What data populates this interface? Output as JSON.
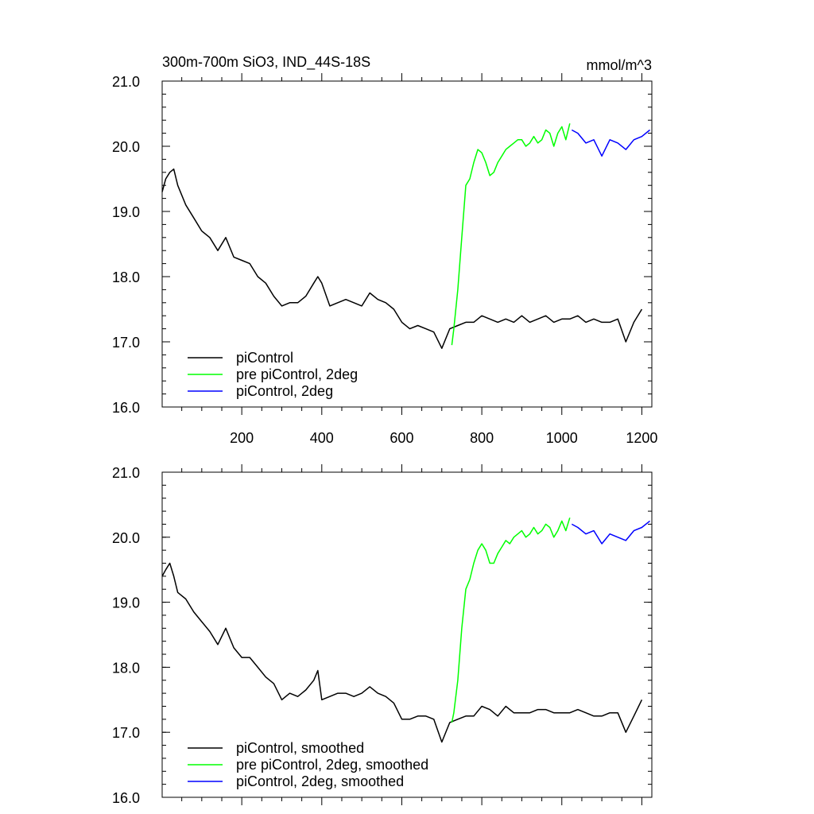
{
  "header": {
    "title": "300m-700m SiO3, IND_44S-18S",
    "units": "mmol/m^3"
  },
  "colors": {
    "piControl": "#000000",
    "pre_piControl_2deg": "#00ff00",
    "piControl_2deg": "#0000ff"
  },
  "chart_data": [
    {
      "type": "line",
      "title": "300m-700m SiO3, IND_44S-18S",
      "units": "mmol/m^3",
      "xlim": [
        1,
        1225
      ],
      "ylim": [
        16.0,
        21.0
      ],
      "xticks": [
        200,
        400,
        600,
        800,
        1000,
        1200
      ],
      "xtick_labels": [
        "200",
        "400",
        "600",
        "800",
        "1000",
        "1200"
      ],
      "yticks": [
        16.0,
        17.0,
        18.0,
        19.0,
        20.0,
        21.0
      ],
      "ytick_labels": [
        "16.0",
        "17.0",
        "18.0",
        "19.0",
        "20.0",
        "21.0"
      ],
      "legend_position": "bottom-left",
      "series": [
        {
          "name": "piControl",
          "color": "#000000",
          "x": [
            1,
            10,
            20,
            30,
            40,
            60,
            80,
            100,
            120,
            140,
            160,
            180,
            200,
            220,
            240,
            260,
            280,
            300,
            320,
            340,
            360,
            380,
            390,
            400,
            420,
            440,
            460,
            480,
            500,
            520,
            540,
            560,
            580,
            600,
            620,
            640,
            660,
            680,
            700,
            720,
            740,
            760,
            780,
            800,
            820,
            840,
            860,
            880,
            900,
            920,
            940,
            960,
            980,
            1000,
            1020,
            1040,
            1060,
            1080,
            1100,
            1120,
            1140,
            1160,
            1180,
            1200
          ],
          "y": [
            19.3,
            19.5,
            19.6,
            19.65,
            19.4,
            19.1,
            18.9,
            18.7,
            18.6,
            18.4,
            18.6,
            18.3,
            18.25,
            18.2,
            18.0,
            17.9,
            17.7,
            17.55,
            17.6,
            17.6,
            17.7,
            17.9,
            18.0,
            17.9,
            17.55,
            17.6,
            17.65,
            17.6,
            17.55,
            17.75,
            17.65,
            17.6,
            17.5,
            17.3,
            17.2,
            17.25,
            17.2,
            17.15,
            16.9,
            17.2,
            17.25,
            17.3,
            17.3,
            17.4,
            17.35,
            17.3,
            17.35,
            17.3,
            17.4,
            17.3,
            17.35,
            17.4,
            17.3,
            17.35,
            17.35,
            17.4,
            17.3,
            17.35,
            17.3,
            17.3,
            17.35,
            17.0,
            17.3,
            17.5
          ]
        },
        {
          "name": "pre piControl, 2deg",
          "color": "#00ff00",
          "x": [
            725,
            730,
            740,
            750,
            760,
            770,
            780,
            790,
            800,
            810,
            820,
            830,
            840,
            850,
            860,
            870,
            880,
            890,
            900,
            910,
            920,
            930,
            940,
            950,
            960,
            970,
            980,
            990,
            1000,
            1010,
            1020
          ],
          "y": [
            16.95,
            17.2,
            17.8,
            18.6,
            19.4,
            19.5,
            19.75,
            19.95,
            19.9,
            19.75,
            19.55,
            19.6,
            19.75,
            19.85,
            19.95,
            20.0,
            20.05,
            20.1,
            20.1,
            20.0,
            20.05,
            20.15,
            20.05,
            20.1,
            20.25,
            20.2,
            20.0,
            20.2,
            20.3,
            20.1,
            20.35
          ]
        },
        {
          "name": "piControl, 2deg",
          "color": "#0000ff",
          "x": [
            1025,
            1040,
            1060,
            1080,
            1100,
            1120,
            1140,
            1160,
            1180,
            1200,
            1220
          ],
          "y": [
            20.25,
            20.2,
            20.05,
            20.1,
            19.85,
            20.1,
            20.05,
            19.95,
            20.1,
            20.15,
            20.25
          ]
        }
      ]
    },
    {
      "type": "line",
      "xlim": [
        1,
        1225
      ],
      "ylim": [
        16.0,
        21.0
      ],
      "yticks": [
        16.0,
        17.0,
        18.0,
        19.0,
        20.0,
        21.0
      ],
      "ytick_labels": [
        "16.0",
        "17.0",
        "18.0",
        "19.0",
        "20.0",
        "21.0"
      ],
      "legend_position": "bottom-left",
      "series": [
        {
          "name": "piControl, smoothed",
          "color": "#000000",
          "x": [
            1,
            10,
            20,
            30,
            40,
            60,
            80,
            100,
            120,
            140,
            160,
            180,
            200,
            220,
            240,
            260,
            280,
            300,
            320,
            340,
            360,
            380,
            390,
            400,
            420,
            440,
            460,
            480,
            500,
            520,
            540,
            560,
            580,
            600,
            620,
            640,
            660,
            680,
            700,
            720,
            740,
            760,
            780,
            800,
            820,
            840,
            860,
            880,
            900,
            920,
            940,
            960,
            980,
            1000,
            1020,
            1040,
            1060,
            1080,
            1100,
            1120,
            1140,
            1160,
            1180,
            1200
          ],
          "y": [
            19.4,
            19.5,
            19.6,
            19.4,
            19.15,
            19.05,
            18.85,
            18.7,
            18.55,
            18.35,
            18.6,
            18.3,
            18.15,
            18.15,
            18.0,
            17.85,
            17.75,
            17.5,
            17.6,
            17.55,
            17.65,
            17.8,
            17.95,
            17.5,
            17.55,
            17.6,
            17.6,
            17.55,
            17.6,
            17.7,
            17.6,
            17.55,
            17.45,
            17.2,
            17.2,
            17.25,
            17.25,
            17.2,
            16.85,
            17.15,
            17.2,
            17.25,
            17.25,
            17.4,
            17.35,
            17.25,
            17.4,
            17.3,
            17.3,
            17.3,
            17.35,
            17.35,
            17.3,
            17.3,
            17.3,
            17.35,
            17.3,
            17.25,
            17.25,
            17.3,
            17.3,
            17.0,
            17.25,
            17.5
          ]
        },
        {
          "name": "pre piControl, 2deg, smoothed",
          "color": "#00ff00",
          "x": [
            725,
            730,
            740,
            750,
            760,
            770,
            780,
            790,
            800,
            810,
            820,
            830,
            840,
            850,
            860,
            870,
            880,
            890,
            900,
            910,
            920,
            930,
            940,
            950,
            960,
            970,
            980,
            990,
            1000,
            1010,
            1020
          ],
          "y": [
            17.15,
            17.3,
            17.8,
            18.6,
            19.2,
            19.35,
            19.6,
            19.8,
            19.9,
            19.8,
            19.6,
            19.6,
            19.75,
            19.85,
            19.95,
            19.9,
            20.0,
            20.05,
            20.1,
            20.0,
            20.05,
            20.15,
            20.05,
            20.1,
            20.2,
            20.15,
            20.0,
            20.1,
            20.25,
            20.1,
            20.3
          ]
        },
        {
          "name": "piControl, 2deg, smoothed",
          "color": "#0000ff",
          "x": [
            1025,
            1040,
            1060,
            1080,
            1100,
            1120,
            1140,
            1160,
            1180,
            1200,
            1220
          ],
          "y": [
            20.2,
            20.15,
            20.05,
            20.1,
            19.9,
            20.05,
            20.0,
            19.95,
            20.1,
            20.15,
            20.25
          ]
        }
      ]
    }
  ]
}
